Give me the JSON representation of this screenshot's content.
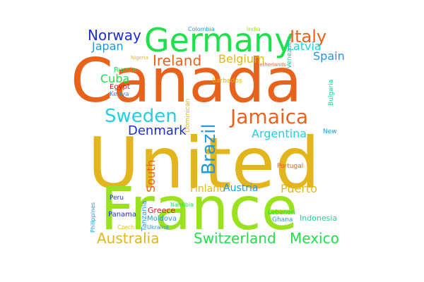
{
  "colors": {
    "orange": "#e8621c",
    "amber": "#e3b51d",
    "lime": "#9ae21e",
    "green": "#1ee04a",
    "cyan": "#22cfe0",
    "blue": "#1e9ae0",
    "navy": "#1e2ed6",
    "red": "#d41e1e",
    "yellow": "#d6c81a",
    "teal": "#1ecf9a"
  },
  "words": [
    {
      "text": "United",
      "color": "amber"
    },
    {
      "text": "France",
      "color": "lime"
    },
    {
      "text": "Canada",
      "color": "orange"
    },
    {
      "text": "Germany",
      "color": "green"
    },
    {
      "text": "Norway",
      "color": "navy"
    },
    {
      "text": "Italy",
      "color": "orange"
    },
    {
      "text": "Japan",
      "color": "blue"
    },
    {
      "text": "Ireland",
      "color": "orange"
    },
    {
      "text": "Belgium",
      "color": "amber"
    },
    {
      "text": "Latvia",
      "color": "cyan"
    },
    {
      "text": "Spain",
      "color": "blue"
    },
    {
      "text": "Colombia",
      "color": "blue"
    },
    {
      "text": "India",
      "color": "lime"
    },
    {
      "text": "Nigeria",
      "color": "amber"
    },
    {
      "text": "Netherlands",
      "color": "orange"
    },
    {
      "text": "Russia",
      "color": "green"
    },
    {
      "text": "Cuba",
      "color": "green"
    },
    {
      "text": "Egypt",
      "color": "red"
    },
    {
      "text": "Kenya",
      "color": "blue"
    },
    {
      "text": "Barbados",
      "color": "amber"
    },
    {
      "text": "Venezuela",
      "color": "teal"
    },
    {
      "text": "Bulgaria",
      "color": "teal"
    },
    {
      "text": "Sweden",
      "color": "cyan"
    },
    {
      "text": "Dominican",
      "color": "amber"
    },
    {
      "text": "Jamaica",
      "color": "orange"
    },
    {
      "text": "Brazil",
      "color": "blue"
    },
    {
      "text": "Denmark",
      "color": "navy"
    },
    {
      "text": "Argentina",
      "color": "cyan"
    },
    {
      "text": "New",
      "color": "blue"
    },
    {
      "text": "South",
      "color": "orange"
    },
    {
      "text": "Portugal",
      "color": "orange"
    },
    {
      "text": "Finland",
      "color": "amber"
    },
    {
      "text": "Austria",
      "color": "blue"
    },
    {
      "text": "Puerto",
      "color": "amber"
    },
    {
      "text": "Peru",
      "color": "navy"
    },
    {
      "text": "Philippines",
      "color": "blue"
    },
    {
      "text": "Tanzania",
      "color": "blue"
    },
    {
      "text": "Namibia",
      "color": "green"
    },
    {
      "text": "Greece",
      "color": "red"
    },
    {
      "text": "Panama",
      "color": "navy"
    },
    {
      "text": "Moldova",
      "color": "blue"
    },
    {
      "text": "Lebanon",
      "color": "green"
    },
    {
      "text": "Ghana",
      "color": "blue"
    },
    {
      "text": "Indonesia",
      "color": "teal"
    },
    {
      "text": "Czech",
      "color": "amber"
    },
    {
      "text": "Ukraine",
      "color": "blue"
    },
    {
      "text": "Australia",
      "color": "amber"
    },
    {
      "text": "Switzerland",
      "color": "green"
    },
    {
      "text": "Mexico",
      "color": "green"
    }
  ]
}
